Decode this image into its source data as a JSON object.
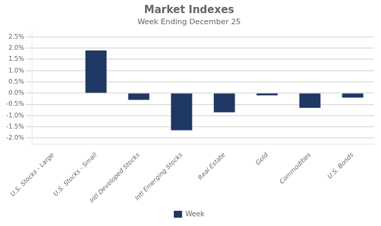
{
  "chart_data": {
    "type": "bar",
    "title": "Market Indexes",
    "subtitle": "Week Ending December 25",
    "categories": [
      "U.S. Stocks - Large",
      "U.S. Stocks - Small",
      "Intl Developed Stocks",
      "Intl Emerging Stocks",
      "Real Estate",
      "Gold",
      "Commodities",
      "U.S. Bonds"
    ],
    "series": [
      {
        "name": "Week",
        "color": "#1F3864",
        "values": [
          0.0,
          0.019,
          -0.003,
          -0.0165,
          -0.0085,
          -0.001,
          -0.0065,
          -0.002
        ]
      }
    ],
    "ylim": [
      -0.0225,
      0.0275
    ],
    "yticks": [
      {
        "value": -0.02,
        "label": "-2.0%"
      },
      {
        "value": -0.015,
        "label": "-1.5%"
      },
      {
        "value": -0.01,
        "label": "-1.0%"
      },
      {
        "value": -0.005,
        "label": "-0.5%"
      },
      {
        "value": 0.0,
        "label": "0.0%"
      },
      {
        "value": 0.005,
        "label": "0.5%"
      },
      {
        "value": 0.01,
        "label": "1.0%"
      },
      {
        "value": 0.015,
        "label": "1.5%"
      },
      {
        "value": 0.02,
        "label": "2.0%"
      },
      {
        "value": 0.025,
        "label": "2.5%"
      }
    ],
    "grid": true,
    "legend": "bottom"
  }
}
